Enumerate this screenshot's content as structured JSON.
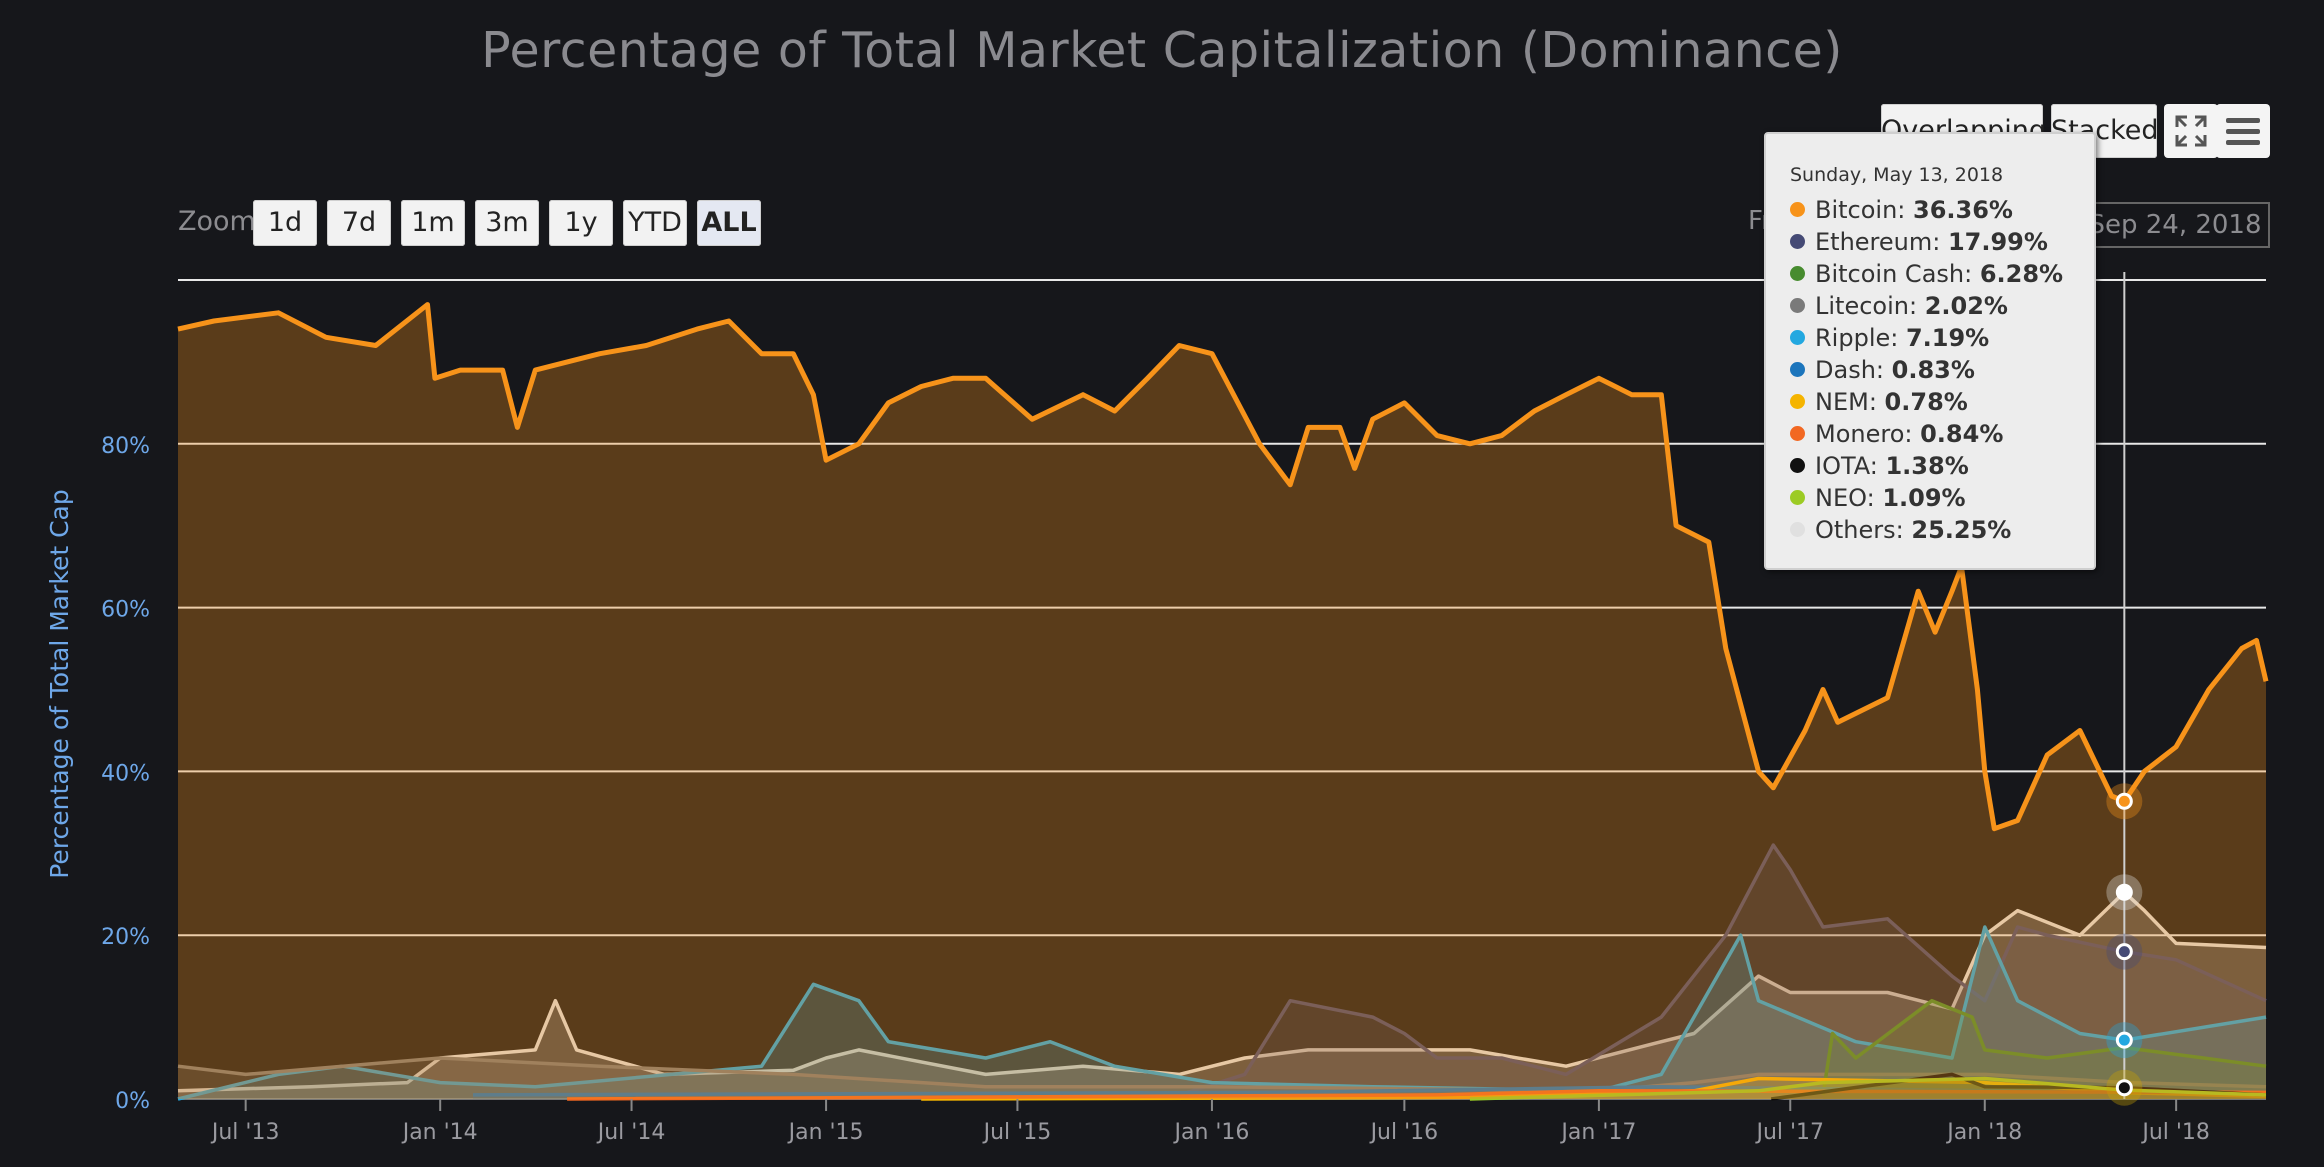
{
  "title": "Percentage of Total Market Capitalization (Dominance)",
  "toolbar": {
    "zoom_label": "Zoom",
    "zoom_buttons": [
      "1d",
      "7d",
      "1m",
      "3m",
      "1y",
      "YTD",
      "ALL"
    ],
    "active_zoom": "ALL",
    "mode_buttons": [
      "Overlapping",
      "Stacked"
    ],
    "from_label": "Fr",
    "to_date": "Sep 24, 2018",
    "icons": [
      "fullscreen-icon",
      "menu-icon"
    ]
  },
  "tooltip": {
    "date": "Sunday, May 13, 2018",
    "items": [
      {
        "name": "Bitcoin",
        "value": "36.36%",
        "color": "#f7931a"
      },
      {
        "name": "Ethereum",
        "value": "17.99%",
        "color": "#454a75"
      },
      {
        "name": "Bitcoin Cash",
        "value": "6.28%",
        "color": "#478c2f"
      },
      {
        "name": "Litecoin",
        "value": "2.02%",
        "color": "#7a7a7a"
      },
      {
        "name": "Ripple",
        "value": "7.19%",
        "color": "#23a8e0"
      },
      {
        "name": "Dash",
        "value": "0.83%",
        "color": "#1c75bc"
      },
      {
        "name": "NEM",
        "value": "0.78%",
        "color": "#f5b400"
      },
      {
        "name": "Monero",
        "value": "0.84%",
        "color": "#f26822"
      },
      {
        "name": "IOTA",
        "value": "1.38%",
        "color": "#111111"
      },
      {
        "name": "NEO",
        "value": "1.09%",
        "color": "#9ccb24"
      },
      {
        "name": "Others",
        "value": "25.25%",
        "color": "#e0e0e0"
      }
    ]
  },
  "chart_data": {
    "type": "area",
    "title": "Percentage of Total Market Capitalization (Dominance)",
    "ylabel": "Percentage of Total Market Cap",
    "ylim": [
      0,
      100
    ],
    "yticks": [
      "0%",
      "20%",
      "40%",
      "60%",
      "80%"
    ],
    "xticks": [
      "Jul '13",
      "Jan '14",
      "Jul '14",
      "Jan '15",
      "Jul '15",
      "Jan '16",
      "Jul '16",
      "Jan '17",
      "Jul '17",
      "Jan '18",
      "Jul '18"
    ],
    "x_start": "2013-04-28",
    "x_end": "2018-09-24",
    "grid": true,
    "series": [
      {
        "name": "Others",
        "color": "#e0e0e0",
        "points": [
          [
            "2013-04-28",
            1
          ],
          [
            "2013-09-01",
            1.5
          ],
          [
            "2013-12-01",
            2
          ],
          [
            "2014-01-01",
            5
          ],
          [
            "2014-04-01",
            6
          ],
          [
            "2014-04-20",
            12
          ],
          [
            "2014-05-10",
            6
          ],
          [
            "2014-08-01",
            3
          ],
          [
            "2014-12-01",
            3.5
          ],
          [
            "2015-01-01",
            5
          ],
          [
            "2015-02-01",
            6
          ],
          [
            "2015-06-01",
            3
          ],
          [
            "2015-09-01",
            4
          ],
          [
            "2015-12-01",
            3
          ],
          [
            "2016-02-01",
            5
          ],
          [
            "2016-04-01",
            6
          ],
          [
            "2016-06-01",
            6
          ],
          [
            "2016-09-01",
            6
          ],
          [
            "2016-12-01",
            4
          ],
          [
            "2017-03-01",
            7
          ],
          [
            "2017-04-01",
            8
          ],
          [
            "2017-06-01",
            15
          ],
          [
            "2017-07-01",
            13
          ],
          [
            "2017-10-01",
            13
          ],
          [
            "2017-12-01",
            11
          ],
          [
            "2018-01-01",
            20
          ],
          [
            "2018-02-01",
            23
          ],
          [
            "2018-04-01",
            20
          ],
          [
            "2018-05-13",
            25.25
          ],
          [
            "2018-06-01",
            23
          ],
          [
            "2018-07-01",
            19
          ],
          [
            "2018-09-24",
            18.5
          ]
        ]
      },
      {
        "name": "Ethereum",
        "color": "#454a75",
        "points": [
          [
            "2015-08-07",
            0.5
          ],
          [
            "2015-12-01",
            0.5
          ],
          [
            "2016-02-01",
            3
          ],
          [
            "2016-03-15",
            12
          ],
          [
            "2016-06-01",
            10
          ],
          [
            "2016-07-01",
            8
          ],
          [
            "2016-08-01",
            5
          ],
          [
            "2016-10-01",
            5
          ],
          [
            "2016-12-01",
            3
          ],
          [
            "2017-03-01",
            10
          ],
          [
            "2017-05-01",
            20
          ],
          [
            "2017-06-15",
            31
          ],
          [
            "2017-07-01",
            28
          ],
          [
            "2017-08-01",
            21
          ],
          [
            "2017-10-01",
            22
          ],
          [
            "2017-12-01",
            15
          ],
          [
            "2018-01-01",
            12
          ],
          [
            "2018-02-01",
            21
          ],
          [
            "2018-03-01",
            20
          ],
          [
            "2018-05-13",
            17.99
          ],
          [
            "2018-07-01",
            17
          ],
          [
            "2018-09-24",
            12
          ]
        ]
      },
      {
        "name": "Ripple",
        "color": "#23a8e0",
        "points": [
          [
            "2013-04-28",
            0
          ],
          [
            "2013-08-01",
            3
          ],
          [
            "2013-10-01",
            4
          ],
          [
            "2014-01-01",
            2
          ],
          [
            "2014-04-01",
            1.5
          ],
          [
            "2014-11-01",
            4
          ],
          [
            "2014-12-20",
            14
          ],
          [
            "2015-02-01",
            12
          ],
          [
            "2015-03-01",
            7
          ],
          [
            "2015-06-01",
            5
          ],
          [
            "2015-08-01",
            7
          ],
          [
            "2015-10-01",
            4
          ],
          [
            "2016-01-01",
            2
          ],
          [
            "2016-06-01",
            1.5
          ],
          [
            "2017-01-01",
            1
          ],
          [
            "2017-03-01",
            3
          ],
          [
            "2017-05-15",
            20
          ],
          [
            "2017-06-01",
            12
          ],
          [
            "2017-09-01",
            7
          ],
          [
            "2017-12-01",
            5
          ],
          [
            "2018-01-01",
            21
          ],
          [
            "2018-02-01",
            12
          ],
          [
            "2018-04-01",
            8
          ],
          [
            "2018-05-13",
            7.19
          ],
          [
            "2018-09-24",
            10
          ]
        ]
      },
      {
        "name": "Litecoin",
        "color": "#7a7a7a",
        "points": [
          [
            "2013-04-28",
            4
          ],
          [
            "2013-07-01",
            3
          ],
          [
            "2013-10-01",
            4
          ],
          [
            "2014-01-01",
            5
          ],
          [
            "2014-06-01",
            4
          ],
          [
            "2014-12-01",
            3
          ],
          [
            "2015-06-01",
            1.5
          ],
          [
            "2016-01-01",
            1.5
          ],
          [
            "2017-01-01",
            1
          ],
          [
            "2017-04-01",
            2
          ],
          [
            "2017-06-01",
            3
          ],
          [
            "2018-01-01",
            3
          ],
          [
            "2018-05-13",
            2.02
          ],
          [
            "2018-09-24",
            1.5
          ]
        ]
      },
      {
        "name": "Bitcoin Cash",
        "color": "#478c2f",
        "points": [
          [
            "2017-08-01",
            0.5
          ],
          [
            "2017-08-10",
            8
          ],
          [
            "2017-09-01",
            5
          ],
          [
            "2017-11-12",
            12
          ],
          [
            "2017-12-20",
            10
          ],
          [
            "2018-01-01",
            6
          ],
          [
            "2018-03-01",
            5
          ],
          [
            "2018-05-13",
            6.28
          ],
          [
            "2018-09-24",
            4
          ]
        ]
      },
      {
        "name": "Dash",
        "color": "#1c75bc",
        "points": [
          [
            "2014-02-01",
            0.5
          ],
          [
            "2016-03-01",
            0.8
          ],
          [
            "2017-03-01",
            1.5
          ],
          [
            "2018-05-13",
            0.83
          ],
          [
            "2018-09-24",
            0.6
          ]
        ]
      },
      {
        "name": "NEM",
        "color": "#f5b400",
        "points": [
          [
            "2015-04-01",
            0
          ],
          [
            "2016-09-01",
            0.2
          ],
          [
            "2017-04-01",
            1
          ],
          [
            "2017-06-01",
            2.5
          ],
          [
            "2018-01-01",
            2
          ],
          [
            "2018-05-13",
            0.78
          ],
          [
            "2018-09-24",
            0.3
          ]
        ]
      },
      {
        "name": "Monero",
        "color": "#f26822",
        "points": [
          [
            "2014-05-01",
            0
          ],
          [
            "2016-08-01",
            0.5
          ],
          [
            "2017-01-01",
            1
          ],
          [
            "2018-05-13",
            0.84
          ],
          [
            "2018-09-24",
            0.8
          ]
        ]
      },
      {
        "name": "IOTA",
        "color": "#111111",
        "points": [
          [
            "2017-06-13",
            0
          ],
          [
            "2017-12-01",
            3
          ],
          [
            "2018-01-01",
            1.5
          ],
          [
            "2018-05-13",
            1.38
          ],
          [
            "2018-09-24",
            0.5
          ]
        ]
      },
      {
        "name": "NEO",
        "color": "#9ccb24",
        "points": [
          [
            "2016-09-01",
            0
          ],
          [
            "2017-06-01",
            1
          ],
          [
            "2017-08-01",
            2
          ],
          [
            "2018-01-01",
            2.5
          ],
          [
            "2018-05-13",
            1.09
          ],
          [
            "2018-09-24",
            0.5
          ]
        ]
      },
      {
        "name": "Bitcoin",
        "color": "#f7931a",
        "points": [
          [
            "2013-04-28",
            94
          ],
          [
            "2013-06-01",
            95
          ],
          [
            "2013-08-01",
            96
          ],
          [
            "2013-09-15",
            93
          ],
          [
            "2013-11-01",
            92
          ],
          [
            "2013-12-20",
            97
          ],
          [
            "2013-12-27",
            88
          ],
          [
            "2014-01-20",
            89
          ],
          [
            "2014-03-01",
            89
          ],
          [
            "2014-03-15",
            82
          ],
          [
            "2014-04-01",
            89
          ],
          [
            "2014-06-01",
            91
          ],
          [
            "2014-07-15",
            92
          ],
          [
            "2014-09-01",
            94
          ],
          [
            "2014-10-01",
            95
          ],
          [
            "2014-11-01",
            91
          ],
          [
            "2014-12-01",
            91
          ],
          [
            "2014-12-20",
            86
          ],
          [
            "2015-01-01",
            78
          ],
          [
            "2015-02-01",
            80
          ],
          [
            "2015-03-01",
            85
          ],
          [
            "2015-04-01",
            87
          ],
          [
            "2015-05-01",
            88
          ],
          [
            "2015-06-01",
            88
          ],
          [
            "2015-07-15",
            83
          ],
          [
            "2015-09-01",
            86
          ],
          [
            "2015-10-01",
            84
          ],
          [
            "2015-11-01",
            88
          ],
          [
            "2015-12-01",
            92
          ],
          [
            "2016-01-01",
            91
          ],
          [
            "2016-02-15",
            80
          ],
          [
            "2016-03-15",
            75
          ],
          [
            "2016-04-01",
            82
          ],
          [
            "2016-05-01",
            82
          ],
          [
            "2016-05-15",
            77
          ],
          [
            "2016-06-01",
            83
          ],
          [
            "2016-07-01",
            85
          ],
          [
            "2016-08-01",
            81
          ],
          [
            "2016-09-01",
            80
          ],
          [
            "2016-10-01",
            81
          ],
          [
            "2016-11-01",
            84
          ],
          [
            "2016-12-01",
            86
          ],
          [
            "2017-01-01",
            88
          ],
          [
            "2017-02-01",
            86
          ],
          [
            "2017-03-01",
            86
          ],
          [
            "2017-03-15",
            70
          ],
          [
            "2017-04-15",
            68
          ],
          [
            "2017-05-01",
            55
          ],
          [
            "2017-06-01",
            40
          ],
          [
            "2017-06-15",
            38
          ],
          [
            "2017-07-15",
            45
          ],
          [
            "2017-08-01",
            50
          ],
          [
            "2017-08-15",
            46
          ],
          [
            "2017-10-01",
            49
          ],
          [
            "2017-10-30",
            62
          ],
          [
            "2017-11-15",
            57
          ],
          [
            "2017-12-01",
            62
          ],
          [
            "2017-12-10",
            65
          ],
          [
            "2017-12-25",
            50
          ],
          [
            "2018-01-01",
            40
          ],
          [
            "2018-01-10",
            33
          ],
          [
            "2018-02-01",
            34
          ],
          [
            "2018-03-01",
            42
          ],
          [
            "2018-04-01",
            45
          ],
          [
            "2018-05-01",
            37
          ],
          [
            "2018-05-13",
            36.36
          ],
          [
            "2018-06-01",
            40
          ],
          [
            "2018-07-01",
            43
          ],
          [
            "2018-08-01",
            50
          ],
          [
            "2018-09-01",
            55
          ],
          [
            "2018-09-15",
            56
          ],
          [
            "2018-09-24",
            51
          ]
        ]
      }
    ],
    "highlight": {
      "date": "2018-05-13",
      "markers": [
        "Bitcoin",
        "Others",
        "Ethereum",
        "Ripple",
        "IOTA"
      ]
    }
  }
}
